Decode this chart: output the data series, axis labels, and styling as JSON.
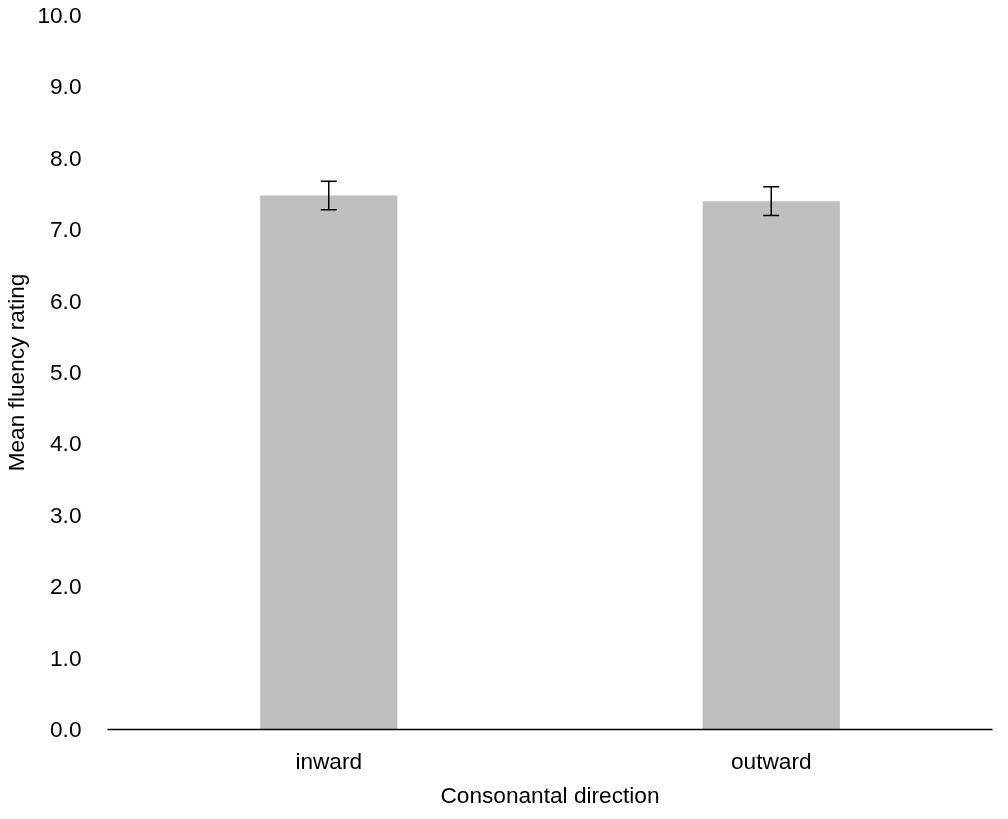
{
  "chart_data": {
    "type": "bar",
    "xlabel": "Consonantal direction",
    "ylabel": "Mean fluency rating",
    "categories": [
      "inward",
      "outward"
    ],
    "values": [
      7.48,
      7.4
    ],
    "errors": [
      0.2,
      0.2
    ],
    "color": "#bfbfbf",
    "ylim": [
      0,
      10
    ],
    "yticks": [
      {
        "value": 0,
        "label": "0.0"
      },
      {
        "value": 1,
        "label": "1.0"
      },
      {
        "value": 2,
        "label": "2.0"
      },
      {
        "value": 3,
        "label": "3.0"
      },
      {
        "value": 4,
        "label": "4.0"
      },
      {
        "value": 5,
        "label": "5.0"
      },
      {
        "value": 6,
        "label": "6.0"
      },
      {
        "value": 7,
        "label": "7.0"
      },
      {
        "value": 8,
        "label": "8.0"
      },
      {
        "value": 9,
        "label": "9.0"
      },
      {
        "value": 10,
        "label": "10.0"
      }
    ],
    "grid": false
  }
}
